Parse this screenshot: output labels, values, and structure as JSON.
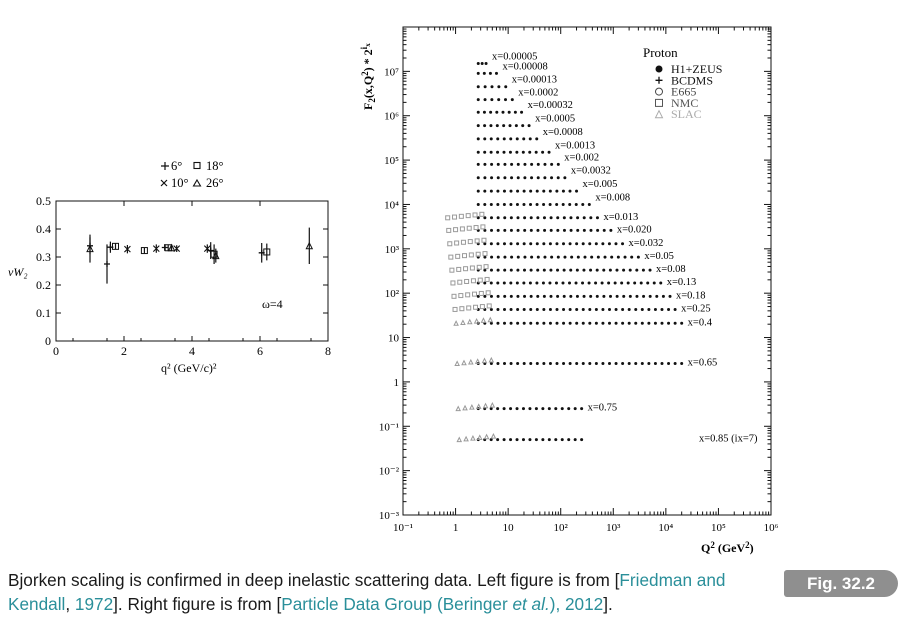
{
  "caption": {
    "prefix": "Bjorken scaling is confirmed in deep inelastic scattering data. Left figure is from [",
    "ref1": "Friedman and Kendall",
    "ref1_sep": ", ",
    "ref1_year": "1972",
    "mid": "]. Right figure is from [",
    "ref2": "Particle Data Group (Beringer ",
    "ref2_etal": "et al.",
    "ref2_close": "), ",
    "ref2_year": "2012",
    "suffix": "].",
    "link_color": "#2a8f9a"
  },
  "figure_label": "Fig. 32.2",
  "chart_data": [
    {
      "type": "scatter",
      "title": "",
      "xlabel": "q² (GeV/c)²",
      "ylabel": "νW₂",
      "xlim": [
        0,
        8
      ],
      "ylim": [
        0,
        0.5
      ],
      "x_ticks": [
        0,
        2,
        4,
        6,
        8
      ],
      "y_ticks": [
        "0",
        "0.1",
        "0.2",
        "0.3",
        "0.4",
        "0.5"
      ],
      "annotation": "ω=4",
      "legend": [
        {
          "symbol": "plus",
          "label": "6°"
        },
        {
          "symbol": "square",
          "label": "18°"
        },
        {
          "symbol": "cross",
          "label": "10°"
        },
        {
          "symbol": "triangle",
          "label": "26°"
        }
      ],
      "points": [
        {
          "x": 1.0,
          "y": 0.33,
          "err": 0.05,
          "s": "triangle"
        },
        {
          "x": 1.0,
          "y": 0.34,
          "err": 0.03,
          "s": "plus"
        },
        {
          "x": 1.5,
          "y": 0.275,
          "err": 0.07,
          "s": "plus"
        },
        {
          "x": 1.6,
          "y": 0.335,
          "err": 0.02,
          "s": "plus"
        },
        {
          "x": 1.75,
          "y": 0.338,
          "err": 0.01,
          "s": "square"
        },
        {
          "x": 2.1,
          "y": 0.328,
          "err": 0.015,
          "s": "cross"
        },
        {
          "x": 2.6,
          "y": 0.323,
          "err": 0.01,
          "s": "square"
        },
        {
          "x": 2.95,
          "y": 0.33,
          "err": 0.015,
          "s": "cross"
        },
        {
          "x": 3.2,
          "y": 0.334,
          "err": 0.012,
          "s": "plus"
        },
        {
          "x": 3.3,
          "y": 0.333,
          "err": 0.012,
          "s": "square"
        },
        {
          "x": 3.4,
          "y": 0.333,
          "err": 0.012,
          "s": "triangle"
        },
        {
          "x": 3.55,
          "y": 0.33,
          "err": 0.012,
          "s": "cross"
        },
        {
          "x": 4.45,
          "y": 0.33,
          "err": 0.015,
          "s": "cross"
        },
        {
          "x": 4.55,
          "y": 0.323,
          "err": 0.03,
          "s": "plus"
        },
        {
          "x": 4.65,
          "y": 0.31,
          "err": 0.035,
          "s": "square"
        },
        {
          "x": 4.7,
          "y": 0.305,
          "err": 0.025,
          "s": "triangle"
        },
        {
          "x": 6.05,
          "y": 0.315,
          "err": 0.035,
          "s": "plus"
        },
        {
          "x": 6.2,
          "y": 0.318,
          "err": 0.03,
          "s": "square"
        },
        {
          "x": 7.45,
          "y": 0.34,
          "err": 0.065,
          "s": "triangle"
        }
      ]
    },
    {
      "type": "scatter",
      "title": "Proton",
      "xlabel": "Q² (GeV²)",
      "ylabel": "F₂(x,Q²) * 2^ix",
      "x_scale": "log",
      "y_scale": "log",
      "x_ticks": [
        "10⁻¹",
        "1",
        "10",
        "10²",
        "10³",
        "10⁴",
        "10⁵",
        "10⁶"
      ],
      "y_ticks": [
        "10⁻³",
        "10⁻²",
        "10⁻¹",
        "1",
        "10",
        "10²",
        "10³",
        "10⁴",
        "10⁵",
        "10⁶",
        "10⁷"
      ],
      "xlim": [
        0.1,
        1000000
      ],
      "ylim": [
        0.001,
        100000000
      ],
      "legend": [
        {
          "symbol": "dot",
          "label": "H1+ZEUS",
          "color": "#111111"
        },
        {
          "symbol": "plus",
          "label": "BCDMS",
          "color": "#111111"
        },
        {
          "symbol": "circle",
          "label": "E665",
          "color": "#444444"
        },
        {
          "symbol": "square",
          "label": "NMC",
          "color": "#555555"
        },
        {
          "symbol": "triangle",
          "label": "SLAC",
          "color": "#aaaaaa"
        }
      ],
      "bins": [
        {
          "label": "x=0.00005",
          "F": 15000000.0,
          "q2": [
            2.7,
            3.8
          ]
        },
        {
          "label": "x=0.00008",
          "F": 9000000.0,
          "q2": [
            2.7,
            6
          ]
        },
        {
          "label": "x=0.00013",
          "F": 4500000.0,
          "q2": [
            2.7,
            9
          ]
        },
        {
          "label": "x=0.0002",
          "F": 2300000.0,
          "q2": [
            2.7,
            12
          ]
        },
        {
          "label": "x=0.00032",
          "F": 1200000.0,
          "q2": [
            2.7,
            18
          ]
        },
        {
          "label": "x=0.0005",
          "F": 600000.0,
          "q2": [
            2.7,
            25
          ]
        },
        {
          "label": "x=0.0008",
          "F": 300000.0,
          "q2": [
            2.7,
            35
          ]
        },
        {
          "label": "x=0.0013",
          "F": 150000.0,
          "q2": [
            2.7,
            60
          ]
        },
        {
          "label": "x=0.002",
          "F": 80000.0,
          "q2": [
            2.7,
            90
          ]
        },
        {
          "label": "x=0.0032",
          "F": 40000.0,
          "q2": [
            2.7,
            120
          ]
        },
        {
          "label": "x=0.005",
          "F": 20000.0,
          "q2": [
            2.7,
            200
          ]
        },
        {
          "label": "x=0.008",
          "F": 10000.0,
          "q2": [
            2.7,
            350
          ]
        },
        {
          "label": "x=0.013",
          "F": 5000,
          "q2": [
            2.7,
            500
          ]
        },
        {
          "label": "x=0.020",
          "F": 2600,
          "q2": [
            2.7,
            900
          ]
        },
        {
          "label": "x=0.032",
          "F": 1300,
          "q2": [
            2.7,
            1500
          ]
        },
        {
          "label": "x=0.05",
          "F": 650,
          "q2": [
            2.7,
            3000
          ]
        },
        {
          "label": "x=0.08",
          "F": 330,
          "q2": [
            2.7,
            5000
          ]
        },
        {
          "label": "x=0.13",
          "F": 170,
          "q2": [
            2.7,
            8000
          ]
        },
        {
          "label": "x=0.18",
          "F": 85,
          "q2": [
            2.7,
            12000
          ]
        },
        {
          "label": "x=0.25",
          "F": 43,
          "q2": [
            2.7,
            15000
          ]
        },
        {
          "label": "x=0.4",
          "F": 21,
          "q2": [
            2.7,
            20000
          ]
        },
        {
          "label": "x=0.65",
          "F": 2.6,
          "q2": [
            2.7,
            20000
          ]
        },
        {
          "label": "x=0.75",
          "F": 0.25,
          "q2": [
            2.7,
            250
          ]
        },
        {
          "label": "x=0.85 (ix=7)",
          "F": 0.05,
          "q2": [
            2.7,
            250
          ]
        }
      ]
    }
  ]
}
